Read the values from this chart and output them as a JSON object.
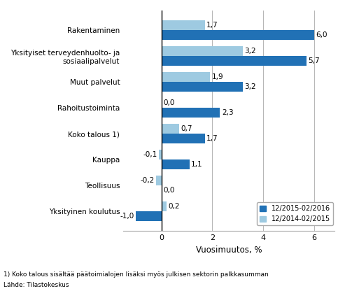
{
  "categories": [
    "Rakentaminen",
    "Yksityiset terveydenhuolto- ja\nsosiaalipalvelut",
    "Muut palvelut",
    "Rahoitustoiminta",
    "Koko talous 1)",
    "Kauppa",
    "Teollisuus",
    "Yksityinen koulutus"
  ],
  "series1_label": "12/2015-02/2016",
  "series2_label": "12/2014-02/2015",
  "series1_values": [
    6.0,
    5.7,
    3.2,
    2.3,
    1.7,
    1.1,
    0.0,
    -1.0
  ],
  "series2_values": [
    1.7,
    3.2,
    1.9,
    0.0,
    0.7,
    -0.1,
    -0.2,
    0.2
  ],
  "series1_labels": [
    "6,0",
    "5,7",
    "3,2",
    "2,3",
    "1,7",
    "1,1",
    "0,0",
    "-1,0"
  ],
  "series2_labels": [
    "1,7",
    "3,2",
    "1,9",
    "0,0",
    "0,7",
    "-0,1",
    "-0,2",
    "0,2"
  ],
  "series1_color": "#2171b5",
  "series2_color": "#9ecae1",
  "xlabel": "Vuosimuutos, %",
  "xlim": [
    -1.5,
    6.8
  ],
  "xticks": [
    0,
    2,
    4,
    6
  ],
  "xtick_labels": [
    "0",
    "2",
    "4",
    "6"
  ],
  "footnote1": "1) Koko talous sisältää päätoimialojen lisäksi myös julkisen sektorin palkkasumman",
  "footnote2": "Lähde: Tilastokeskus",
  "background_color": "#ffffff",
  "bar_height": 0.38,
  "label_fontsize": 7.5,
  "tick_fontsize": 8,
  "xlabel_fontsize": 8.5,
  "ylabel_fontsize": 8
}
